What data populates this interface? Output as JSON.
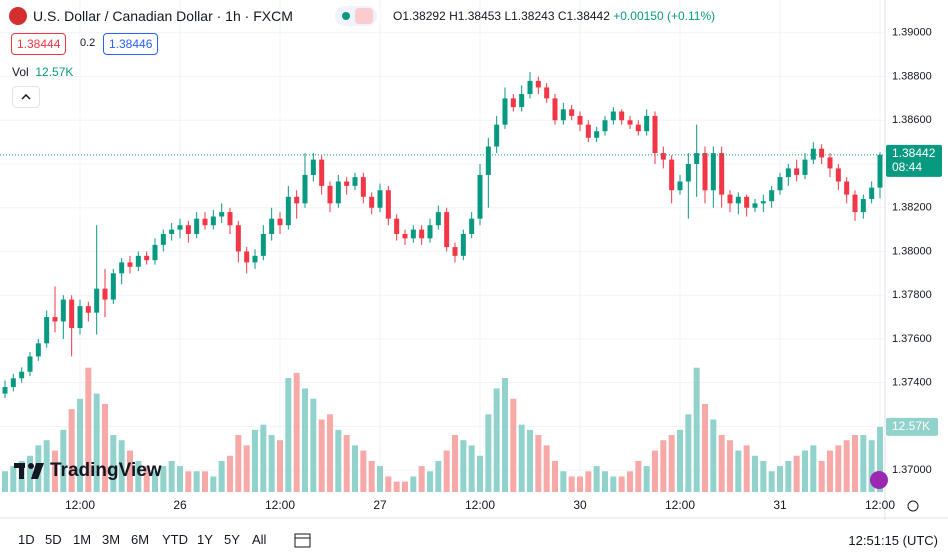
{
  "header": {
    "title": "U.S. Dollar / Canadian Dollar · 1h · FXCM",
    "ohlc": [
      "O1.38292",
      "H1.38453",
      "L1.38243",
      "C1.38442"
    ],
    "change": "+0.00150 (+0.11%)",
    "bid": "1.38444",
    "spread": "0.2",
    "ask": "1.38446",
    "volume_label": "Vol",
    "volume_value": "12.57K"
  },
  "chart_data": {
    "type": "candlestick",
    "ohlc": [
      [
        1.3735,
        1.3741,
        1.3733,
        1.3738
      ],
      [
        1.3738,
        1.3744,
        1.3736,
        1.3742
      ],
      [
        1.3742,
        1.3747,
        1.374,
        1.3745
      ],
      [
        1.3745,
        1.3754,
        1.3743,
        1.3752
      ],
      [
        1.3752,
        1.376,
        1.375,
        1.3758
      ],
      [
        1.3758,
        1.3773,
        1.3756,
        1.377
      ],
      [
        1.377,
        1.3784,
        1.3763,
        1.3768
      ],
      [
        1.3768,
        1.378,
        1.376,
        1.3778
      ],
      [
        1.3778,
        1.378,
        1.3752,
        1.3765
      ],
      [
        1.3765,
        1.3778,
        1.3762,
        1.3775
      ],
      [
        1.3775,
        1.3777,
        1.3768,
        1.3772
      ],
      [
        1.3772,
        1.3812,
        1.3762,
        1.3783
      ],
      [
        1.3783,
        1.3792,
        1.377,
        1.3778
      ],
      [
        1.3778,
        1.3792,
        1.3776,
        1.379
      ],
      [
        1.379,
        1.3797,
        1.3785,
        1.3795
      ],
      [
        1.3795,
        1.3798,
        1.379,
        1.3793
      ],
      [
        1.3793,
        1.38,
        1.3791,
        1.3798
      ],
      [
        1.3798,
        1.38,
        1.3794,
        1.3796
      ],
      [
        1.3796,
        1.3806,
        1.3794,
        1.3803
      ],
      [
        1.3803,
        1.381,
        1.38,
        1.3808
      ],
      [
        1.3808,
        1.3813,
        1.3805,
        1.381
      ],
      [
        1.381,
        1.3815,
        1.3806,
        1.3812
      ],
      [
        1.3812,
        1.3814,
        1.3804,
        1.3808
      ],
      [
        1.3808,
        1.3818,
        1.3806,
        1.3815
      ],
      [
        1.3815,
        1.3818,
        1.381,
        1.3812
      ],
      [
        1.3812,
        1.3819,
        1.381,
        1.3816
      ],
      [
        1.3816,
        1.3822,
        1.3813,
        1.3818
      ],
      [
        1.3818,
        1.382,
        1.3808,
        1.3812
      ],
      [
        1.3812,
        1.3814,
        1.3795,
        1.38
      ],
      [
        1.38,
        1.3802,
        1.379,
        1.3795
      ],
      [
        1.3795,
        1.3801,
        1.3792,
        1.3798
      ],
      [
        1.3798,
        1.3812,
        1.3796,
        1.3808
      ],
      [
        1.3808,
        1.382,
        1.3805,
        1.3815
      ],
      [
        1.3815,
        1.3818,
        1.3808,
        1.3812
      ],
      [
        1.3812,
        1.383,
        1.381,
        1.3825
      ],
      [
        1.3825,
        1.3828,
        1.3815,
        1.3822
      ],
      [
        1.3822,
        1.3845,
        1.382,
        1.3835
      ],
      [
        1.3835,
        1.3845,
        1.3832,
        1.3842
      ],
      [
        1.3842,
        1.3844,
        1.3826,
        1.383
      ],
      [
        1.383,
        1.3832,
        1.3818,
        1.3822
      ],
      [
        1.3822,
        1.3835,
        1.382,
        1.3832
      ],
      [
        1.3832,
        1.3834,
        1.3826,
        1.383
      ],
      [
        1.383,
        1.3836,
        1.3828,
        1.3834
      ],
      [
        1.3834,
        1.3836,
        1.3822,
        1.3825
      ],
      [
        1.3825,
        1.3827,
        1.3817,
        1.382
      ],
      [
        1.382,
        1.3831,
        1.3818,
        1.3828
      ],
      [
        1.3828,
        1.383,
        1.3812,
        1.3815
      ],
      [
        1.3815,
        1.3817,
        1.3805,
        1.3808
      ],
      [
        1.3808,
        1.381,
        1.3803,
        1.3806
      ],
      [
        1.3806,
        1.3812,
        1.3804,
        1.381
      ],
      [
        1.381,
        1.3812,
        1.3803,
        1.3806
      ],
      [
        1.3806,
        1.3815,
        1.3804,
        1.3812
      ],
      [
        1.3812,
        1.3821,
        1.381,
        1.3818
      ],
      [
        1.3818,
        1.382,
        1.38,
        1.3802
      ],
      [
        1.3802,
        1.3804,
        1.3795,
        1.3798
      ],
      [
        1.3798,
        1.381,
        1.3796,
        1.3808
      ],
      [
        1.3808,
        1.3818,
        1.3806,
        1.3815
      ],
      [
        1.3815,
        1.384,
        1.3812,
        1.3835
      ],
      [
        1.3835,
        1.3852,
        1.382,
        1.3848
      ],
      [
        1.3848,
        1.3862,
        1.3845,
        1.3858
      ],
      [
        1.3858,
        1.3875,
        1.3856,
        1.387
      ],
      [
        1.387,
        1.3872,
        1.3864,
        1.3866
      ],
      [
        1.3866,
        1.3876,
        1.3864,
        1.3872
      ],
      [
        1.3872,
        1.3882,
        1.387,
        1.3878
      ],
      [
        1.3878,
        1.388,
        1.3872,
        1.3875
      ],
      [
        1.3875,
        1.3877,
        1.3868,
        1.387
      ],
      [
        1.387,
        1.3872,
        1.3858,
        1.386
      ],
      [
        1.386,
        1.3868,
        1.3858,
        1.3865
      ],
      [
        1.3865,
        1.3867,
        1.386,
        1.3862
      ],
      [
        1.3862,
        1.3864,
        1.3855,
        1.3858
      ],
      [
        1.3858,
        1.386,
        1.385,
        1.3852
      ],
      [
        1.3852,
        1.3857,
        1.385,
        1.3855
      ],
      [
        1.3855,
        1.3862,
        1.3853,
        1.386
      ],
      [
        1.386,
        1.3866,
        1.3858,
        1.3864
      ],
      [
        1.3864,
        1.3865,
        1.3858,
        1.386
      ],
      [
        1.386,
        1.3862,
        1.3856,
        1.3858
      ],
      [
        1.3858,
        1.386,
        1.3853,
        1.3855
      ],
      [
        1.3855,
        1.3865,
        1.3853,
        1.3862
      ],
      [
        1.3862,
        1.3864,
        1.384,
        1.3845
      ],
      [
        1.3845,
        1.3848,
        1.3838,
        1.3842
      ],
      [
        1.3842,
        1.3844,
        1.3822,
        1.3828
      ],
      [
        1.3828,
        1.3835,
        1.3826,
        1.3832
      ],
      [
        1.3832,
        1.3845,
        1.3815,
        1.384
      ],
      [
        1.384,
        1.3858,
        1.3825,
        1.3845
      ],
      [
        1.3845,
        1.3848,
        1.3822,
        1.3828
      ],
      [
        1.3828,
        1.3848,
        1.382,
        1.3845
      ],
      [
        1.3845,
        1.3848,
        1.382,
        1.3826
      ],
      [
        1.3826,
        1.3828,
        1.3818,
        1.3822
      ],
      [
        1.3822,
        1.3827,
        1.3817,
        1.3825
      ],
      [
        1.3825,
        1.3826,
        1.3816,
        1.382
      ],
      [
        1.382,
        1.3824,
        1.3818,
        1.3822
      ],
      [
        1.3822,
        1.3826,
        1.3818,
        1.3823
      ],
      [
        1.3823,
        1.383,
        1.382,
        1.3828
      ],
      [
        1.3828,
        1.3836,
        1.3826,
        1.3834
      ],
      [
        1.3834,
        1.384,
        1.383,
        1.3838
      ],
      [
        1.3838,
        1.3842,
        1.3832,
        1.3835
      ],
      [
        1.3835,
        1.3845,
        1.3833,
        1.3842
      ],
      [
        1.3842,
        1.385,
        1.384,
        1.3847
      ],
      [
        1.3847,
        1.3849,
        1.384,
        1.3843
      ],
      [
        1.3843,
        1.3845,
        1.3834,
        1.3838
      ],
      [
        1.3838,
        1.384,
        1.3828,
        1.3832
      ],
      [
        1.3832,
        1.3834,
        1.3822,
        1.3826
      ],
      [
        1.3826,
        1.3828,
        1.3814,
        1.3818
      ],
      [
        1.3818,
        1.3826,
        1.3815,
        1.3824
      ],
      [
        1.3824,
        1.3832,
        1.3822,
        1.38292
      ],
      [
        1.38292,
        1.38453,
        1.38243,
        1.38442
      ]
    ],
    "volume": [
      4,
      5,
      6,
      7,
      9,
      10,
      8,
      12,
      16,
      18,
      24,
      19,
      17,
      11,
      10,
      8,
      6,
      5,
      4,
      5,
      6,
      5,
      4,
      4,
      4,
      3,
      6,
      7,
      11,
      9,
      12,
      13,
      11,
      10,
      22,
      23,
      20,
      18,
      14,
      15,
      12,
      11,
      9,
      8,
      6,
      5,
      3,
      2,
      2,
      3,
      5,
      4,
      6,
      8,
      11,
      10,
      9,
      7,
      15,
      20,
      22,
      18,
      13,
      12,
      11,
      9,
      6,
      4,
      3,
      3,
      4,
      5,
      4,
      3,
      3,
      4,
      6,
      5,
      8,
      10,
      11,
      12,
      15,
      24,
      17,
      14,
      11,
      10,
      8,
      9,
      7,
      6,
      4,
      5,
      6,
      7,
      8,
      9,
      6,
      8,
      9,
      10,
      11,
      11,
      10,
      12.57
    ],
    "ylim": [
      1.369,
      1.3915
    ],
    "yticks": [
      {
        "value": 1.37,
        "label": "1.37000"
      },
      {
        "value": 1.372,
        "label": "1.37200"
      },
      {
        "value": 1.374,
        "label": "1.37400"
      },
      {
        "value": 1.376,
        "label": "1.37600"
      },
      {
        "value": 1.378,
        "label": "1.37800"
      },
      {
        "value": 1.38,
        "label": "1.38000"
      },
      {
        "value": 1.382,
        "label": "1.38200"
      },
      {
        "value": 1.384,
        "label": "1.38400"
      },
      {
        "value": 1.386,
        "label": "1.38600"
      },
      {
        "value": 1.388,
        "label": "1.38800"
      },
      {
        "value": 1.39,
        "label": "1.39000"
      }
    ],
    "xlim": [
      -0.6,
      105.6
    ],
    "xticks": [
      {
        "value": 9,
        "label": "12:00"
      },
      {
        "value": 21,
        "label": "26"
      },
      {
        "value": 33,
        "label": "12:00"
      },
      {
        "value": 45,
        "label": "27"
      },
      {
        "value": 57,
        "label": "12:00"
      },
      {
        "value": 69,
        "label": "30"
      },
      {
        "value": 81,
        "label": "12:00"
      },
      {
        "value": 93,
        "label": "31"
      },
      {
        "value": 105,
        "label": "12:00"
      }
    ],
    "volume_lim": [
      0,
      95
    ],
    "up_color": "#089981",
    "down_color": "#f23645",
    "up_volume_color": "#92d2cc",
    "down_volume_color": "#f7a9a7",
    "last_price_label": "1.38442",
    "countdown": "08:44",
    "volume_tag": "12.57K",
    "grid": true
  },
  "toolbar": {
    "periods": [
      "1D",
      "5D",
      "1M",
      "3M",
      "6M",
      "YTD",
      "1Y",
      "5Y",
      "All"
    ],
    "clock": "12:51:15 (UTC)"
  },
  "logo": "TradingView"
}
